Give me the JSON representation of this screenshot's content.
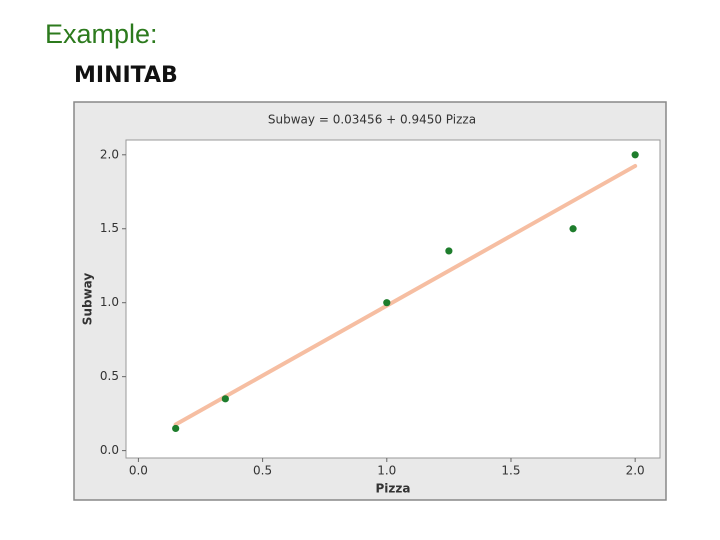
{
  "heading": "Example:",
  "subheading": "MINITAB",
  "chart_data": {
    "type": "scatter",
    "title": "Subway = 0.03456 + 0.9450 Pizza",
    "xlabel": "Pizza",
    "ylabel": "Subway",
    "series": [
      {
        "name": "Subway",
        "color": "#1e7d2c",
        "x": [
          0.15,
          0.35,
          1.0,
          1.25,
          1.75,
          2.0
        ],
        "values": [
          0.15,
          0.35,
          1.0,
          1.35,
          1.5,
          2.0
        ]
      }
    ],
    "fit": {
      "intercept": 0.03456,
      "slope": 0.945,
      "color": "#f6b899"
    },
    "xlim": [
      -0.05,
      2.1
    ],
    "ylim": [
      -0.05,
      2.1
    ],
    "xticks": [
      {
        "value": 0,
        "label": "0.0"
      },
      0.5,
      {
        "value": 1,
        "label": "1.0"
      },
      1.5,
      {
        "value": 2,
        "label": "2.0"
      }
    ],
    "yticks": [
      {
        "value": 0,
        "label": "0.0"
      },
      0.5,
      {
        "value": 1,
        "label": "1.0"
      },
      1.5,
      {
        "value": 2,
        "label": "2.0"
      }
    ],
    "grid": false
  }
}
